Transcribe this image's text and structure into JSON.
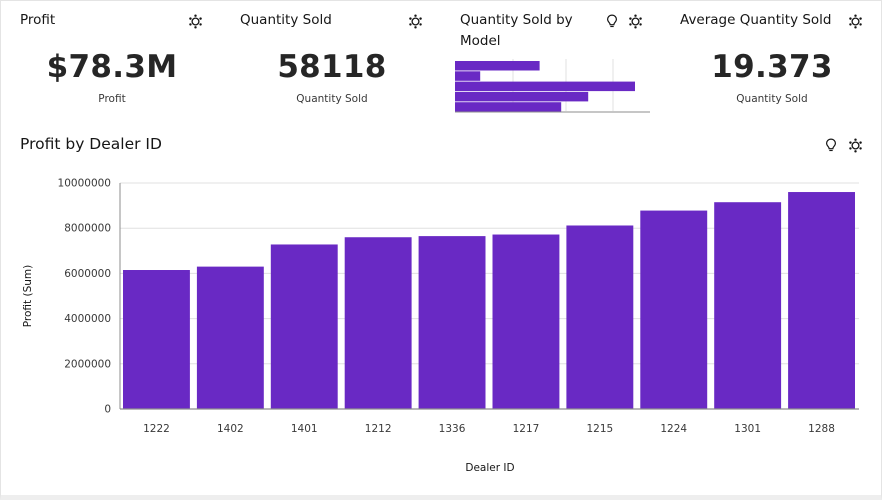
{
  "kpis": [
    {
      "title": "Profit",
      "value": "$78.3M",
      "label": "Profit"
    },
    {
      "title": "Quantity Sold",
      "value": "58118",
      "label": "Quantity Sold"
    },
    {
      "title": "Average Quantity Sold",
      "value": "19.373",
      "label": "Quantity Sold"
    }
  ],
  "mini_chart": {
    "title": "Quantity Sold by Model",
    "title_line1": "Quantity Sold by",
    "title_line2": "Model"
  },
  "main_chart": {
    "title": "Profit by Dealer ID"
  },
  "icons": {
    "settings": "gear-icon",
    "insight": "lightbulb-icon"
  },
  "colors": {
    "bar": "#6929c4",
    "axis": "#8d8d8d",
    "grid": "#e0e0e0"
  },
  "chart_data": [
    {
      "type": "bar",
      "orientation": "horizontal",
      "title": "Quantity Sold by Model",
      "values": [
        0.47,
        0.14,
        1.0,
        0.74,
        0.59
      ],
      "grid": true
    },
    {
      "type": "bar",
      "title": "Profit by Dealer ID",
      "xlabel": "Dealer ID",
      "ylabel": "Profit (Sum)",
      "categories": [
        "1222",
        "1402",
        "1401",
        "1212",
        "1336",
        "1217",
        "1215",
        "1224",
        "1301",
        "1288"
      ],
      "values": [
        6150000,
        6300000,
        7280000,
        7600000,
        7650000,
        7720000,
        8120000,
        8780000,
        9150000,
        9600000
      ],
      "ylim": [
        0,
        10000000
      ],
      "yticks": [
        "0",
        "2000000",
        "4000000",
        "6000000",
        "8000000",
        "10000000"
      ],
      "grid": true,
      "legend": "none"
    }
  ]
}
